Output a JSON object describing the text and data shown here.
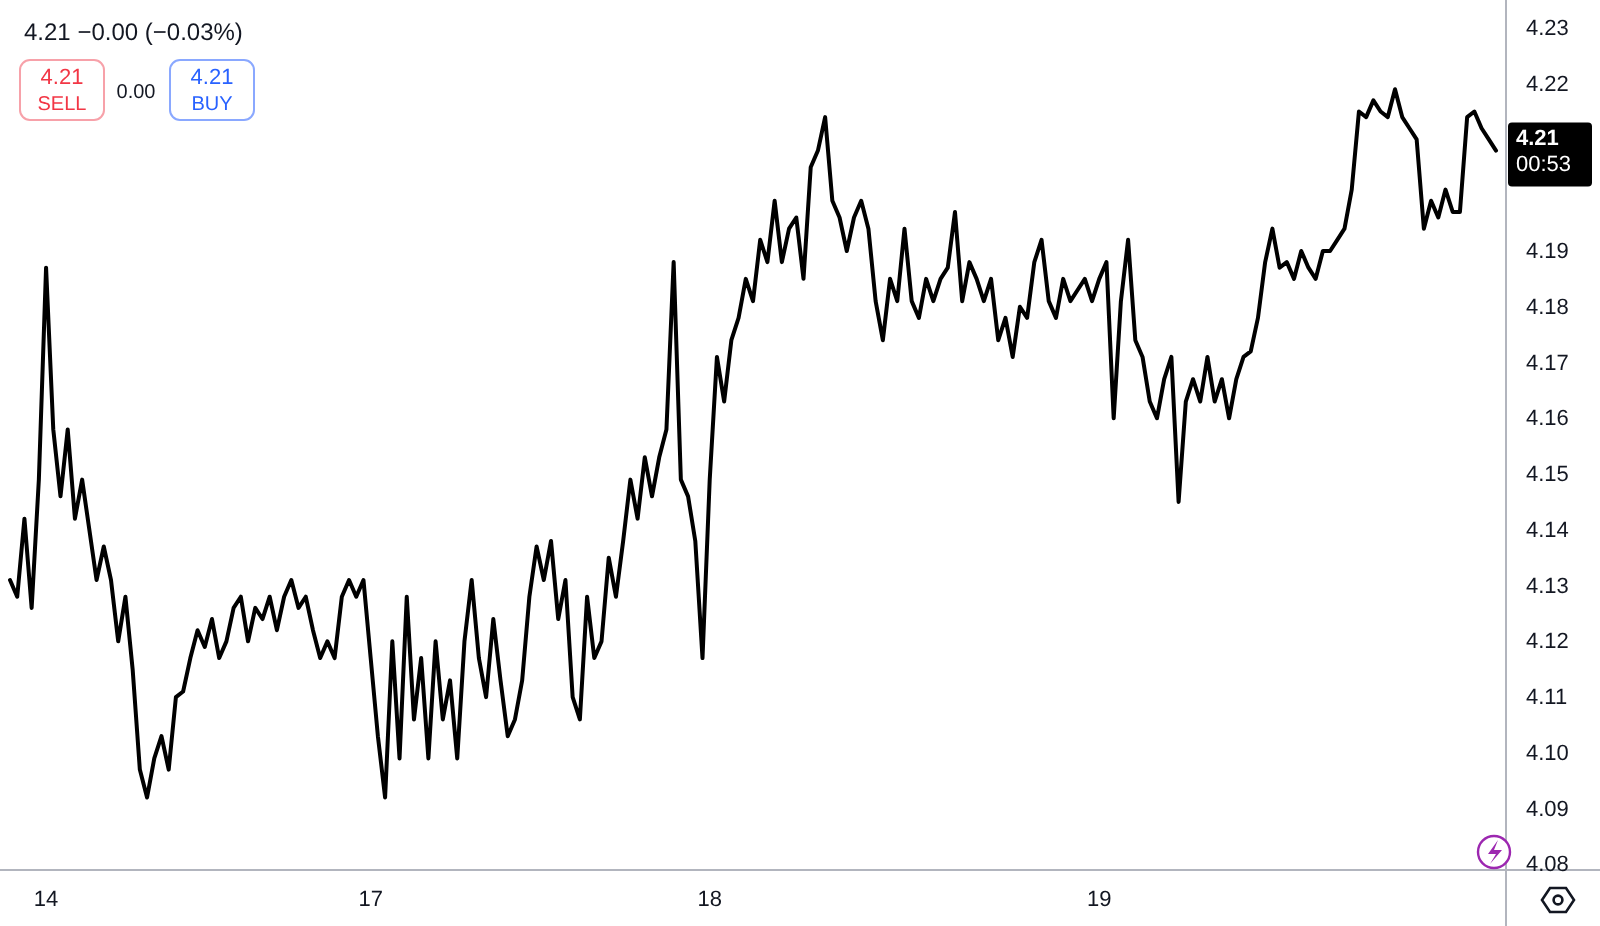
{
  "chart_data": {
    "type": "line",
    "categories": [
      null,
      null,
      null,
      null,
      null,
      "14",
      null,
      null,
      null,
      null,
      null,
      null,
      null,
      null,
      null,
      null,
      null,
      null,
      null,
      null,
      null,
      null,
      null,
      null,
      null,
      null,
      null,
      null,
      null,
      null,
      null,
      null,
      null,
      null,
      null,
      null,
      null,
      null,
      null,
      null,
      null,
      null,
      null,
      null,
      null,
      null,
      null,
      null,
      null,
      null,
      "17",
      null,
      null,
      null,
      null,
      null,
      null,
      null,
      null,
      null,
      null,
      null,
      null,
      null,
      null,
      null,
      null,
      null,
      null,
      null,
      null,
      null,
      null,
      null,
      null,
      null,
      null,
      null,
      null,
      null,
      null,
      null,
      null,
      null,
      null,
      null,
      null,
      null,
      null,
      null,
      null,
      null,
      null,
      null,
      null,
      null,
      null,
      "18",
      null,
      null,
      null,
      null,
      null,
      null,
      null,
      null,
      null,
      null,
      null,
      null,
      null,
      null,
      null,
      null,
      null,
      null,
      null,
      null,
      null,
      null,
      null,
      null,
      null,
      null,
      null,
      null,
      null,
      null,
      null,
      null,
      null,
      null,
      null,
      null,
      null,
      null,
      null,
      null,
      null,
      null,
      null,
      null,
      null,
      null,
      null,
      null,
      null,
      null,
      null,
      null,
      null,
      "19",
      null,
      null,
      null,
      null,
      null,
      null,
      null,
      null,
      null,
      null,
      null,
      null,
      null,
      null,
      null,
      null,
      null,
      null,
      null,
      null,
      null,
      null,
      null,
      null,
      null,
      null,
      null,
      null,
      null,
      null,
      null,
      null,
      null,
      null,
      null,
      null,
      null,
      null,
      null,
      null,
      null,
      null,
      null,
      null,
      null,
      null,
      null,
      null,
      null,
      null,
      null,
      null,
      null,
      null,
      null
    ],
    "series": [
      {
        "color": "#000000",
        "values": [
          4.131,
          4.128,
          4.142,
          4.126,
          4.149,
          4.187,
          4.158,
          4.146,
          4.158,
          4.142,
          4.149,
          4.14,
          4.131,
          4.137,
          4.131,
          4.12,
          4.128,
          4.115,
          4.097,
          4.092,
          4.099,
          4.103,
          4.097,
          4.11,
          4.111,
          4.117,
          4.122,
          4.119,
          4.124,
          4.117,
          4.12,
          4.126,
          4.128,
          4.12,
          4.126,
          4.124,
          4.128,
          4.122,
          4.128,
          4.131,
          4.126,
          4.128,
          4.122,
          4.117,
          4.12,
          4.117,
          4.128,
          4.131,
          4.128,
          4.131,
          4.117,
          4.103,
          4.092,
          4.12,
          4.099,
          4.128,
          4.106,
          4.117,
          4.099,
          4.12,
          4.106,
          4.113,
          4.099,
          4.12,
          4.131,
          4.117,
          4.11,
          4.124,
          4.113,
          4.103,
          4.106,
          4.113,
          4.128,
          4.137,
          4.131,
          4.138,
          4.124,
          4.131,
          4.11,
          4.106,
          4.128,
          4.117,
          4.12,
          4.135,
          4.128,
          4.138,
          4.149,
          4.142,
          4.153,
          4.146,
          4.153,
          4.158,
          4.188,
          4.149,
          4.146,
          4.138,
          4.117,
          4.149,
          4.171,
          4.163,
          4.174,
          4.178,
          4.185,
          4.181,
          4.192,
          4.188,
          4.199,
          4.188,
          4.194,
          4.196,
          4.185,
          4.205,
          4.208,
          4.214,
          4.199,
          4.196,
          4.19,
          4.196,
          4.199,
          4.194,
          4.181,
          4.174,
          4.185,
          4.181,
          4.194,
          4.181,
          4.178,
          4.185,
          4.181,
          4.185,
          4.187,
          4.197,
          4.181,
          4.188,
          4.185,
          4.181,
          4.185,
          4.174,
          4.178,
          4.171,
          4.18,
          4.178,
          4.188,
          4.192,
          4.181,
          4.178,
          4.185,
          4.181,
          4.183,
          4.185,
          4.181,
          4.185,
          4.188,
          4.16,
          4.181,
          4.192,
          4.174,
          4.171,
          4.163,
          4.16,
          4.167,
          4.171,
          4.145,
          4.163,
          4.167,
          4.163,
          4.171,
          4.163,
          4.167,
          4.16,
          4.167,
          4.171,
          4.172,
          4.178,
          4.188,
          4.194,
          4.187,
          4.188,
          4.185,
          4.19,
          4.187,
          4.185,
          4.19,
          4.19,
          4.192,
          4.194,
          4.201,
          4.215,
          4.214,
          4.217,
          4.215,
          4.214,
          4.219,
          4.214,
          4.212,
          4.21,
          4.194,
          4.199,
          4.196,
          4.201,
          4.197,
          4.197,
          4.214,
          4.215,
          4.212,
          4.21,
          4.208
        ]
      }
    ],
    "ylim": [
      4.079,
      4.235
    ],
    "yticks": [
      4.08,
      4.09,
      {
        "value": 4.1,
        "label": "4.10"
      },
      4.11,
      4.12,
      4.13,
      4.14,
      4.15,
      4.16,
      4.17,
      4.18,
      4.19,
      4.22,
      4.23
    ],
    "grid": false,
    "annotations": [
      "4.21 −0.00 (−0.03%)",
      "4.21",
      "SELL",
      "0.00",
      "4.21",
      "BUY",
      "4.21",
      "00:53"
    ]
  }
}
